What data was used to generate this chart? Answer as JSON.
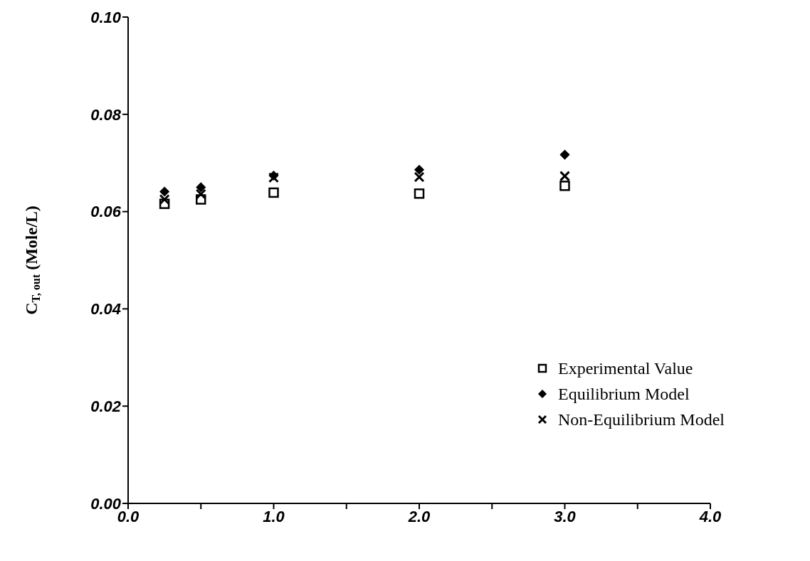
{
  "chart_data": {
    "type": "scatter",
    "ylabel": "C$_{T, out}$ (Mole/L)",
    "xlim": [
      0,
      4
    ],
    "xticks": [
      {
        "value": 0,
        "label": "0.0"
      },
      {
        "value": 0.5,
        "label": null
      },
      {
        "value": 1,
        "label": "1.0"
      },
      {
        "value": 1.5,
        "label": null
      },
      {
        "value": 2,
        "label": "2.0"
      },
      {
        "value": 2.5,
        "label": null
      },
      {
        "value": 3,
        "label": "3.0"
      },
      {
        "value": 3.5,
        "label": null
      },
      {
        "value": 4,
        "label": "4.0"
      }
    ],
    "ylim": [
      0,
      0.1
    ],
    "yticks": [
      {
        "value": 0,
        "label": "0.00"
      },
      {
        "value": 0.02,
        "label": "0.02"
      },
      {
        "value": 0.04,
        "label": "0.04"
      },
      {
        "value": 0.06,
        "label": "0.06"
      },
      {
        "value": 0.08,
        "label": "0.08"
      },
      {
        "value": 0.1,
        "label": "0.10"
      }
    ],
    "x": [
      0.25,
      0.5,
      1,
      2,
      3
    ],
    "series": [
      {
        "name": "Experimental Value",
        "color": "#000000",
        "marker": "square",
        "values": [
          0.0616,
          0.0625,
          0.0639,
          0.0637,
          0.0653
        ]
      },
      {
        "name": "Equilibrium Model",
        "color": "#000000",
        "marker": "diamond",
        "values": [
          0.0641,
          0.065,
          0.0674,
          0.0686,
          0.0717
        ]
      },
      {
        "name": "Non-Equilibrium Model",
        "color": "#000000",
        "marker": "cross",
        "values": [
          0.0625,
          0.0636,
          0.067,
          0.0671,
          0.0673
        ]
      }
    ],
    "legend": "bottom right",
    "grid": false
  }
}
